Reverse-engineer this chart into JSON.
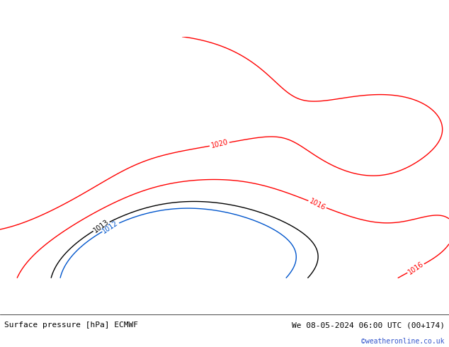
{
  "title_left": "Surface pressure [hPa] ECMWF",
  "title_right": "We 08-05-2024 06:00 UTC (00+174)",
  "watermark": "©weatheronline.co.uk",
  "background_land": "#b8dea0",
  "background_sea": "#d8e8d0",
  "contour_color_red": "red",
  "contour_color_black": "black",
  "contour_color_blue": "#0055cc",
  "border_color": "#9999bb",
  "text_color_watermark": "#3355cc",
  "fig_width": 6.34,
  "fig_height": 4.9,
  "dpi": 100,
  "lon_min": -10.5,
  "lon_max": 42.5,
  "lat_min": 24.0,
  "lat_max": 52.5,
  "title_fontsize": 8,
  "watermark_fontsize": 7,
  "contour_linewidth": 1.0,
  "label_fontsize": 7
}
